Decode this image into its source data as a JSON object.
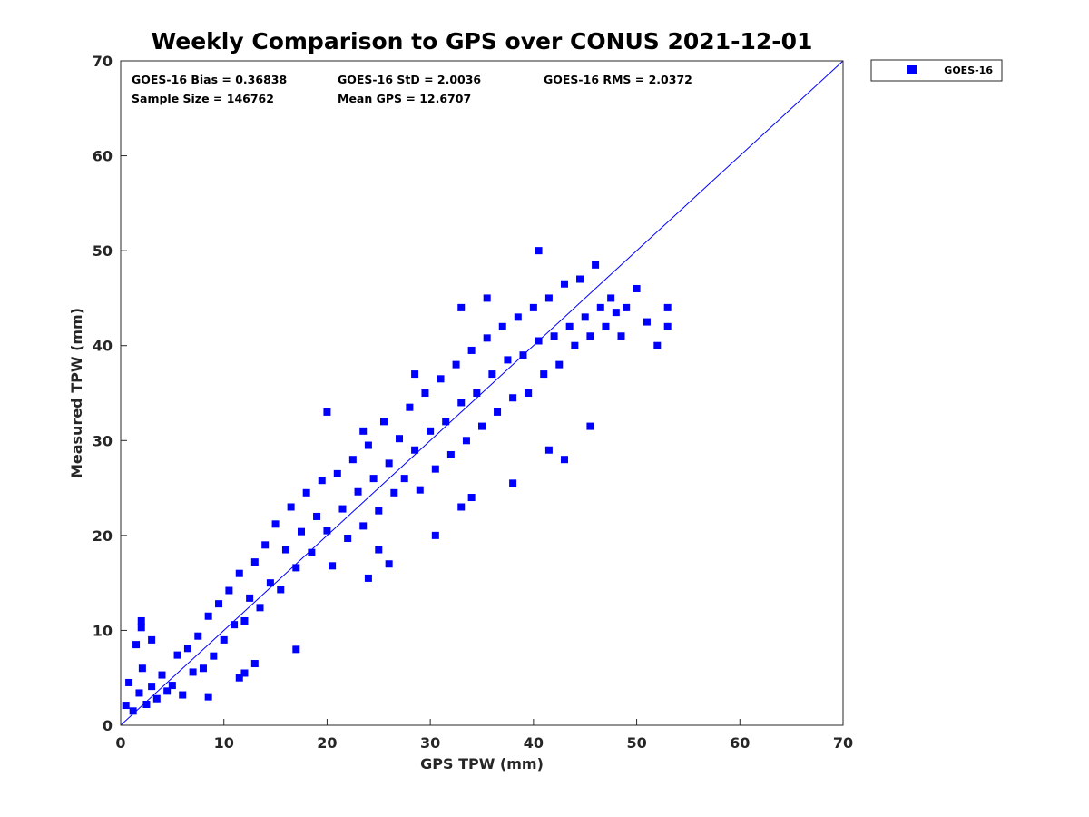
{
  "chart_data": {
    "type": "scatter",
    "title": "Weekly Comparison to GPS over CONUS 2021-12-01",
    "xlabel": "GPS TPW (mm)",
    "ylabel": "Measured TPW (mm)",
    "xlim": [
      0,
      70
    ],
    "ylim": [
      0,
      70
    ],
    "xticks": [
      "0",
      "10",
      "20",
      "30",
      "40",
      "50",
      "60",
      "70"
    ],
    "yticks": [
      "0",
      "10",
      "20",
      "30",
      "40",
      "50",
      "60",
      "70"
    ],
    "legend": {
      "label": "GOES-16",
      "position": "outside top-right"
    },
    "stats": {
      "bias": "GOES-16 Bias = 0.36838",
      "std": "GOES-16 StD = 2.0036",
      "rms": "GOES-16 RMS = 2.0372",
      "sample_size": "Sample Size = 146762",
      "mean_gps": "Mean GPS = 12.6707"
    },
    "reference_line": {
      "from": [
        0,
        0
      ],
      "to": [
        70,
        70
      ]
    },
    "series": [
      {
        "name": "GOES-16",
        "color": "#0000ff",
        "marker": "square",
        "points": [
          [
            0.5,
            2.1
          ],
          [
            1.2,
            1.5
          ],
          [
            1.8,
            3.4
          ],
          [
            2.5,
            2.2
          ],
          [
            3.0,
            4.1
          ],
          [
            0.8,
            4.5
          ],
          [
            2.1,
            6.0
          ],
          [
            3.5,
            2.8
          ],
          [
            4.0,
            5.3
          ],
          [
            4.5,
            3.6
          ],
          [
            1.5,
            8.5
          ],
          [
            2.0,
            10.3
          ],
          [
            3.0,
            9.0
          ],
          [
            5.0,
            4.2
          ],
          [
            5.5,
            7.4
          ],
          [
            6.0,
            3.2
          ],
          [
            6.5,
            8.1
          ],
          [
            7.0,
            5.6
          ],
          [
            7.5,
            9.4
          ],
          [
            8.0,
            6.0
          ],
          [
            8.5,
            11.5
          ],
          [
            9.0,
            7.3
          ],
          [
            9.5,
            12.8
          ],
          [
            10.0,
            9.0
          ],
          [
            10.5,
            14.2
          ],
          [
            11.0,
            10.6
          ],
          [
            11.5,
            16.0
          ],
          [
            12.0,
            11.0
          ],
          [
            12.5,
            13.4
          ],
          [
            13.0,
            17.2
          ],
          [
            13.5,
            12.4
          ],
          [
            14.0,
            19.0
          ],
          [
            14.5,
            15.0
          ],
          [
            15.0,
            21.2
          ],
          [
            15.5,
            14.3
          ],
          [
            16.0,
            18.5
          ],
          [
            16.5,
            23.0
          ],
          [
            17.0,
            16.6
          ],
          [
            17.5,
            20.4
          ],
          [
            18.0,
            24.5
          ],
          [
            18.5,
            18.2
          ],
          [
            19.0,
            22.0
          ],
          [
            19.5,
            25.8
          ],
          [
            20.0,
            20.5
          ],
          [
            20.5,
            16.8
          ],
          [
            21.0,
            26.5
          ],
          [
            21.5,
            22.8
          ],
          [
            22.0,
            19.7
          ],
          [
            22.5,
            28.0
          ],
          [
            23.0,
            24.6
          ],
          [
            23.5,
            21.0
          ],
          [
            24.0,
            29.5
          ],
          [
            24.5,
            26.0
          ],
          [
            25.0,
            22.6
          ],
          [
            25.5,
            32.0
          ],
          [
            26.0,
            27.6
          ],
          [
            26.5,
            24.5
          ],
          [
            27.0,
            30.2
          ],
          [
            27.5,
            26.0
          ],
          [
            28.0,
            33.5
          ],
          [
            28.5,
            29.0
          ],
          [
            29.0,
            24.8
          ],
          [
            29.5,
            35.0
          ],
          [
            30.0,
            31.0
          ],
          [
            30.5,
            27.0
          ],
          [
            31.0,
            36.5
          ],
          [
            31.5,
            32.0
          ],
          [
            32.0,
            28.5
          ],
          [
            32.5,
            38.0
          ],
          [
            33.0,
            34.0
          ],
          [
            33.5,
            30.0
          ],
          [
            34.0,
            39.5
          ],
          [
            34.5,
            35.0
          ],
          [
            35.0,
            31.5
          ],
          [
            35.5,
            40.8
          ],
          [
            36.0,
            37.0
          ],
          [
            36.5,
            33.0
          ],
          [
            37.0,
            42.0
          ],
          [
            37.5,
            38.5
          ],
          [
            38.0,
            34.5
          ],
          [
            38.5,
            43.0
          ],
          [
            39.0,
            39.0
          ],
          [
            39.5,
            35.0
          ],
          [
            40.0,
            44.0
          ],
          [
            40.5,
            40.5
          ],
          [
            41.0,
            37.0
          ],
          [
            41.5,
            45.0
          ],
          [
            42.0,
            41.0
          ],
          [
            42.5,
            38.0
          ],
          [
            43.0,
            46.5
          ],
          [
            43.5,
            42.0
          ],
          [
            44.0,
            40.0
          ],
          [
            44.5,
            47.0
          ],
          [
            45.0,
            43.0
          ],
          [
            45.5,
            41.0
          ],
          [
            46.0,
            48.5
          ],
          [
            46.5,
            44.0
          ],
          [
            47.0,
            42.0
          ],
          [
            47.5,
            45.0
          ],
          [
            48.0,
            43.5
          ],
          [
            48.5,
            41.0
          ],
          [
            49.0,
            44.0
          ],
          [
            50.0,
            46.0
          ],
          [
            51.0,
            42.5
          ],
          [
            52.0,
            40.0
          ],
          [
            53.0,
            44.0
          ],
          [
            53.0,
            42.0
          ],
          [
            40.5,
            50.0
          ],
          [
            41.5,
            29.0
          ],
          [
            34.0,
            24.0
          ],
          [
            33.0,
            23.0
          ],
          [
            25.0,
            18.5
          ],
          [
            26.0,
            17.0
          ],
          [
            24.0,
            15.5
          ],
          [
            13.0,
            6.5
          ],
          [
            12.0,
            5.5
          ],
          [
            8.5,
            3.0
          ],
          [
            11.5,
            5.0
          ],
          [
            2.0,
            11.0
          ],
          [
            17.0,
            8.0
          ],
          [
            30.5,
            20.0
          ],
          [
            38.0,
            25.5
          ],
          [
            43.0,
            28.0
          ],
          [
            45.5,
            31.5
          ],
          [
            23.5,
            31.0
          ],
          [
            28.5,
            37.0
          ],
          [
            33.0,
            44.0
          ],
          [
            35.5,
            45.0
          ],
          [
            20.0,
            33.0
          ]
        ]
      }
    ]
  }
}
